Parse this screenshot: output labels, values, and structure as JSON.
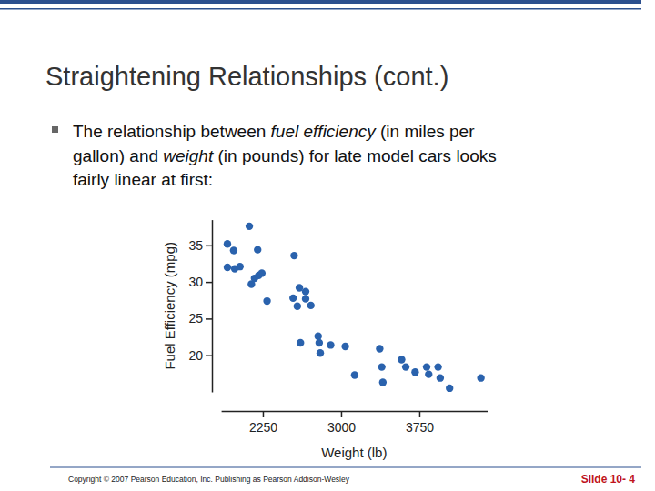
{
  "slide": {
    "title": "Straightening Relationships (cont.)",
    "bullet": [
      [
        {
          "text": "The relationship between "
        },
        {
          "text": "fuel efficiency",
          "emphasis": true
        },
        {
          "text": " (in miles per"
        }
      ],
      [
        {
          "text": "gallon) and "
        },
        {
          "text": "weight",
          "emphasis": true
        },
        {
          "text": " (in pounds) for late model cars looks"
        }
      ],
      [
        {
          "text": "fairly linear at first:"
        }
      ]
    ],
    "footer": "Copyright © 2007 Pearson Education, Inc. Publishing as Pearson Addison-Wesley",
    "slide_number": "Slide 10- 4"
  },
  "chart_data": {
    "type": "scatter",
    "x_label": "Weight (lb)",
    "y_label": "Fuel Efficiency (mpg)",
    "x": [
      1910,
      2120,
      1970,
      1910,
      1980,
      2030,
      2200,
      2140,
      2170,
      2210,
      2240,
      2290,
      2550,
      2600,
      2660,
      2540,
      2660,
      2580,
      2710,
      2610,
      2780,
      2790,
      2900,
      2800,
      3040,
      3130,
      3370,
      3390,
      3400,
      3580,
      3620,
      3710,
      3820,
      3840,
      3930,
      3950,
      4040,
      4340
    ],
    "values": [
      35.2,
      37.6,
      34.3,
      32.0,
      31.8,
      32.1,
      34.4,
      29.7,
      30.5,
      30.9,
      31.2,
      27.4,
      33.6,
      29.2,
      28.7,
      27.8,
      27.7,
      26.7,
      26.8,
      21.7,
      22.6,
      21.7,
      21.4,
      20.3,
      21.2,
      17.3,
      20.9,
      18.4,
      16.3,
      19.4,
      18.4,
      17.7,
      18.4,
      17.4,
      18.4,
      16.9,
      15.5,
      16.9
    ],
    "color": "#2a62ad",
    "marker": "circle",
    "xlim": [
      1850,
      4400
    ],
    "ylim": [
      15,
      38.5
    ],
    "xticks": [
      2250,
      3000,
      3750
    ],
    "yticks": [
      20,
      25,
      30,
      35
    ],
    "grid": false
  }
}
